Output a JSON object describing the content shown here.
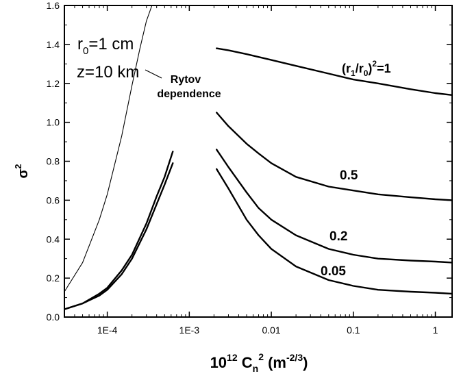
{
  "chart_data": {
    "type": "line",
    "title": "",
    "xscale": "log",
    "xlim": [
      3e-05,
      1.6
    ],
    "ylim": [
      0,
      1.6
    ],
    "grid": false,
    "xlabel": {
      "base": "10",
      "sup1": "12",
      "main": " C",
      "sub": "n",
      "sup2": "2",
      "unit": " (m",
      "unit_sup": "-2/3",
      "close": ")"
    },
    "ylabel": {
      "main": "σ",
      "sup": "2"
    },
    "xticks": [
      {
        "v": 0.0001,
        "label": "1E-4"
      },
      {
        "v": 0.001,
        "label": "1E-3"
      },
      {
        "v": 0.01,
        "label": "0.01"
      },
      {
        "v": 0.1,
        "label": "0.1"
      },
      {
        "v": 1,
        "label": "1"
      }
    ],
    "yticks": [
      {
        "v": 0.0,
        "label": "0.0"
      },
      {
        "v": 0.2,
        "label": "0.2"
      },
      {
        "v": 0.4,
        "label": "0.4"
      },
      {
        "v": 0.6,
        "label": "0.6"
      },
      {
        "v": 0.8,
        "label": "0.8"
      },
      {
        "v": 1.0,
        "label": "1.0"
      },
      {
        "v": 1.2,
        "label": "1.2"
      },
      {
        "v": 1.4,
        "label": "1.4"
      },
      {
        "v": 1.6,
        "label": "1.6"
      }
    ],
    "annotations": {
      "r0": {
        "main": "r",
        "sub": "0",
        "rest": "=1 cm"
      },
      "z": "z=10 km",
      "rytov1": "Rytov",
      "rytov2": "dependence",
      "ratio": {
        "p1": "(r",
        "s1": "1",
        "p2": "/r",
        "s2": "0",
        "p3": ")",
        "sup": "2",
        "p4": "=1"
      },
      "l05": "0.5",
      "l02": "0.2",
      "l005": "0.05"
    },
    "series": [
      {
        "id": "rytov",
        "name": "Rytov dependence",
        "x": [
          3e-05,
          5e-05,
          8e-05,
          0.0001,
          0.00015,
          0.0002,
          0.00025,
          0.0003,
          0.00035,
          0.0004
        ],
        "y": [
          0.13,
          0.28,
          0.5,
          0.63,
          0.93,
          1.19,
          1.38,
          1.52,
          1.6,
          1.62
        ]
      },
      {
        "id": "weak_upper",
        "name": "",
        "x": [
          3e-05,
          5e-05,
          8e-05,
          0.0001,
          0.00015,
          0.0002,
          0.0003,
          0.0004,
          0.0005,
          0.00063
        ],
        "y": [
          0.04,
          0.07,
          0.12,
          0.15,
          0.24,
          0.32,
          0.48,
          0.62,
          0.72,
          0.85
        ]
      },
      {
        "id": "weak_lower",
        "name": "",
        "x": [
          3e-05,
          5e-05,
          8e-05,
          0.0001,
          0.00015,
          0.0002,
          0.0003,
          0.0004,
          0.0005,
          0.00063
        ],
        "y": [
          0.04,
          0.07,
          0.11,
          0.14,
          0.22,
          0.3,
          0.45,
          0.58,
          0.68,
          0.79
        ]
      },
      {
        "id": "ratio_1",
        "name": "(r1/r0)^2=1",
        "x": [
          0.00215,
          0.003,
          0.005,
          0.01,
          0.02,
          0.05,
          0.1,
          0.2,
          0.5,
          1,
          1.6
        ],
        "y": [
          1.38,
          1.37,
          1.35,
          1.32,
          1.29,
          1.25,
          1.22,
          1.2,
          1.17,
          1.15,
          1.14
        ]
      },
      {
        "id": "ratio_05",
        "name": "0.5",
        "x": [
          0.00215,
          0.003,
          0.005,
          0.007,
          0.01,
          0.02,
          0.05,
          0.1,
          0.2,
          0.5,
          1,
          1.6
        ],
        "y": [
          1.05,
          0.98,
          0.89,
          0.84,
          0.79,
          0.72,
          0.67,
          0.65,
          0.63,
          0.615,
          0.605,
          0.6
        ]
      },
      {
        "id": "ratio_02",
        "name": "0.2",
        "x": [
          0.00215,
          0.003,
          0.005,
          0.007,
          0.01,
          0.02,
          0.05,
          0.1,
          0.2,
          0.5,
          1,
          1.6
        ],
        "y": [
          0.86,
          0.77,
          0.64,
          0.56,
          0.5,
          0.42,
          0.35,
          0.32,
          0.3,
          0.29,
          0.285,
          0.28
        ]
      },
      {
        "id": "ratio_005",
        "name": "0.05",
        "x": [
          0.00215,
          0.003,
          0.005,
          0.007,
          0.01,
          0.02,
          0.05,
          0.1,
          0.2,
          0.5,
          1,
          1.6
        ],
        "y": [
          0.76,
          0.66,
          0.5,
          0.42,
          0.35,
          0.26,
          0.19,
          0.16,
          0.14,
          0.13,
          0.125,
          0.12
        ]
      }
    ]
  }
}
